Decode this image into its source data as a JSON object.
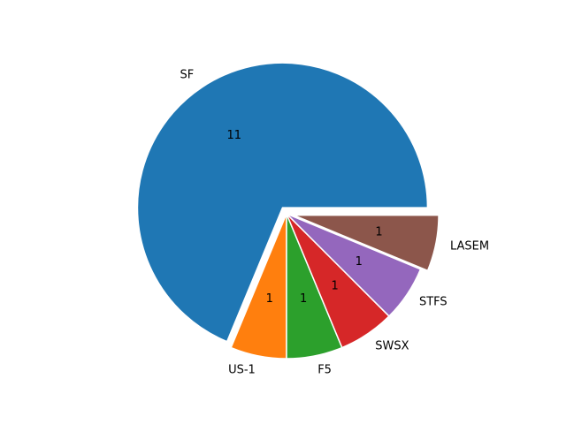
{
  "chart_data": {
    "type": "pie",
    "title": "",
    "categories": [
      "SF",
      "US-1",
      "F5",
      "SWSX",
      "STFS",
      "LASEM"
    ],
    "values": [
      11,
      1,
      1,
      1,
      1,
      1
    ],
    "colors": [
      "#1f77b4",
      "#ff7f0e",
      "#2ca02c",
      "#d62728",
      "#9467bd",
      "#8c564b"
    ],
    "start_angle_deg": 0,
    "direction": "counterclockwise",
    "exploded": [
      "SF",
      "LASEM"
    ],
    "legend": "none",
    "value_labels": [
      "11",
      "1",
      "1",
      "1",
      "1",
      "1"
    ]
  }
}
